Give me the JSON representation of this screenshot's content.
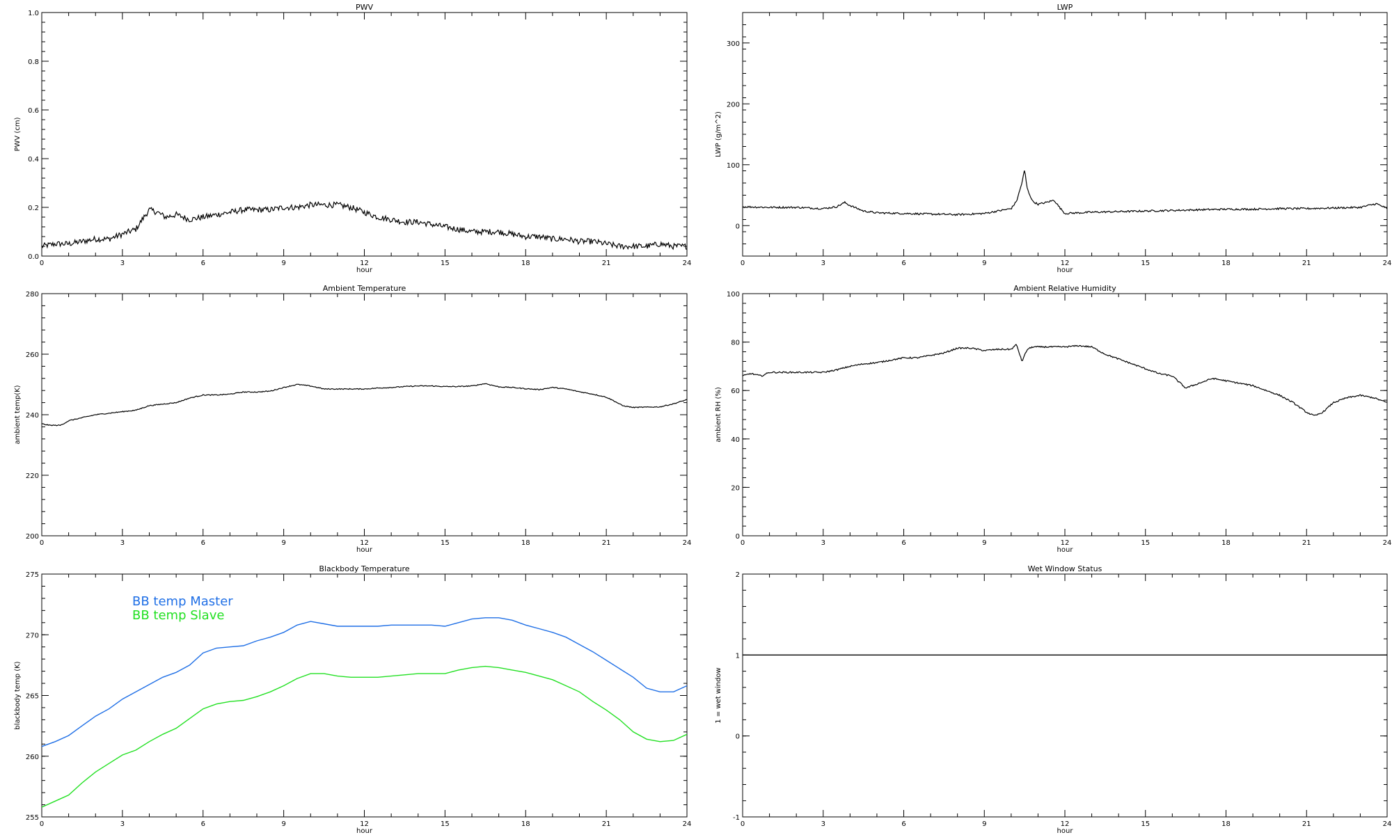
{
  "colors": {
    "background": "#ffffff",
    "axes": "#000000",
    "master": "#1f6fe6",
    "slave": "#22e022"
  },
  "chart_data": [
    {
      "type": "line",
      "title": "PWV",
      "xlabel": "hour",
      "ylabel": "PWV (cm)",
      "xlim": [
        0,
        24
      ],
      "ylim": [
        0,
        1.0
      ],
      "xticks": [
        "0",
        "3",
        "6",
        "9",
        "12",
        "15",
        "18",
        "21",
        "24"
      ],
      "yticks": [
        "0.0",
        "0.2",
        "0.4",
        "0.6",
        "0.8",
        "1.0"
      ],
      "grid": false,
      "series": [
        {
          "color": "#000000",
          "noise": 0.012,
          "x": [
            0,
            0.5,
            1,
            1.5,
            2,
            2.5,
            3,
            3.5,
            3.8,
            4.0,
            4.3,
            4.6,
            5.0,
            5.5,
            6,
            6.5,
            7,
            7.5,
            8,
            8.5,
            9,
            9.5,
            10,
            10.5,
            11,
            11.5,
            12,
            12.5,
            13,
            13.5,
            14,
            14.5,
            15,
            15.5,
            16,
            16.5,
            17,
            17.5,
            18,
            18.5,
            19,
            19.5,
            20,
            20.5,
            21,
            21.5,
            22,
            22.5,
            23,
            23.5,
            24
          ],
          "y": [
            0.04,
            0.05,
            0.05,
            0.06,
            0.07,
            0.07,
            0.09,
            0.11,
            0.16,
            0.19,
            0.18,
            0.16,
            0.17,
            0.15,
            0.16,
            0.17,
            0.18,
            0.19,
            0.19,
            0.19,
            0.2,
            0.2,
            0.21,
            0.21,
            0.21,
            0.2,
            0.18,
            0.16,
            0.15,
            0.14,
            0.14,
            0.13,
            0.12,
            0.11,
            0.1,
            0.1,
            0.1,
            0.09,
            0.08,
            0.08,
            0.07,
            0.07,
            0.06,
            0.06,
            0.05,
            0.04,
            0.04,
            0.04,
            0.05,
            0.04,
            0.04
          ]
        }
      ]
    },
    {
      "type": "line",
      "title": "LWP",
      "xlabel": "hour",
      "ylabel": "LWP (g/m^2)",
      "xlim": [
        0,
        24
      ],
      "ylim": [
        -50,
        350
      ],
      "xticks": [
        "0",
        "3",
        "6",
        "9",
        "12",
        "15",
        "18",
        "21",
        "24"
      ],
      "yticks": [
        "0",
        "100",
        "200",
        "300"
      ],
      "yticks_at": [
        0,
        100,
        200,
        300
      ],
      "grid": false,
      "series": [
        {
          "color": "#000000",
          "noise": 1.5,
          "x": [
            0,
            1,
            2,
            3,
            3.5,
            3.8,
            4.0,
            4.5,
            5,
            6,
            7,
            8,
            9,
            9.5,
            10,
            10.2,
            10.4,
            10.5,
            10.6,
            10.8,
            11,
            11.3,
            11.6,
            11.8,
            12,
            13,
            14,
            15,
            16,
            17,
            18,
            19,
            20,
            21,
            22,
            23,
            23.6,
            24
          ],
          "y": [
            31,
            30,
            30,
            28,
            31,
            38,
            33,
            24,
            21,
            20,
            19,
            18,
            20,
            24,
            28,
            40,
            70,
            92,
            60,
            40,
            35,
            38,
            42,
            30,
            20,
            22,
            23,
            24,
            25,
            26,
            27,
            27,
            28,
            28,
            29,
            30,
            36,
            28
          ]
        }
      ]
    },
    {
      "type": "line",
      "title": "Ambient Temperature",
      "xlabel": "hour",
      "ylabel": "ambient temp(K)",
      "xlim": [
        0,
        24
      ],
      "ylim": [
        200,
        280
      ],
      "xticks": [
        "0",
        "3",
        "6",
        "9",
        "12",
        "15",
        "18",
        "21",
        "24"
      ],
      "yticks": [
        "200",
        "220",
        "240",
        "260",
        "280"
      ],
      "yticks_at": [
        200,
        220,
        240,
        260,
        280
      ],
      "grid": false,
      "series": [
        {
          "color": "#000000",
          "noise": 0.15,
          "x": [
            0,
            0.3,
            0.7,
            1,
            1.5,
            2,
            2.5,
            3,
            3.5,
            4,
            4.5,
            5,
            5.5,
            6,
            6.5,
            7,
            7.5,
            8,
            8.5,
            9,
            9.5,
            10,
            10.5,
            11,
            11.5,
            12,
            12.5,
            13,
            13.5,
            14,
            14.5,
            15,
            15.5,
            16,
            16.5,
            17,
            17.5,
            18,
            18.5,
            19,
            19.5,
            20,
            20.5,
            21,
            21.3,
            21.6,
            22,
            22.5,
            23,
            23.5,
            24
          ],
          "y": [
            237,
            236.5,
            236.5,
            238,
            239,
            240,
            240.5,
            241,
            241.5,
            243,
            243.5,
            244,
            245.5,
            246.5,
            246.5,
            246.8,
            247.5,
            247.5,
            247.8,
            249,
            250,
            249.5,
            248.5,
            248.5,
            248.5,
            248.5,
            248.8,
            249,
            249.3,
            249.5,
            249.5,
            249.3,
            249.3,
            249.5,
            250.3,
            249.2,
            249,
            248.6,
            248.3,
            249,
            248.5,
            247.6,
            246.8,
            245.8,
            244.5,
            243,
            242.4,
            242.5,
            242.6,
            243.6,
            245
          ]
        }
      ]
    },
    {
      "type": "line",
      "title": "Ambient Relative Humidity",
      "xlabel": "hour",
      "ylabel": "ambient RH (%)",
      "xlim": [
        0,
        24
      ],
      "ylim": [
        0,
        100
      ],
      "xticks": [
        "0",
        "3",
        "6",
        "9",
        "12",
        "15",
        "18",
        "21",
        "24"
      ],
      "yticks": [
        "0",
        "20",
        "40",
        "60",
        "80",
        "100"
      ],
      "yticks_at": [
        0,
        20,
        40,
        60,
        80,
        100
      ],
      "grid": false,
      "series": [
        {
          "color": "#000000",
          "noise": 0.3,
          "x": [
            0,
            0.3,
            0.7,
            1,
            1.5,
            2,
            2.5,
            3,
            3.5,
            4,
            4.5,
            5,
            5.5,
            6,
            6.5,
            7,
            7.5,
            8,
            8.5,
            9,
            9.5,
            10,
            10.2,
            10.4,
            10.6,
            10.8,
            11,
            11.5,
            12,
            12.5,
            13,
            13.5,
            14,
            14.5,
            15,
            15.5,
            16,
            16.5,
            17,
            17.5,
            18,
            18.5,
            19,
            19.5,
            20,
            20.5,
            21,
            21.3,
            21.6,
            22,
            22.5,
            23,
            23.5,
            24
          ],
          "y": [
            66,
            67,
            66,
            67.5,
            67.5,
            67.5,
            67.5,
            67.5,
            68.5,
            70,
            71,
            71.5,
            72.5,
            73.5,
            73.5,
            74.5,
            75.5,
            77.5,
            77.5,
            76.5,
            77,
            77,
            79,
            72,
            77,
            78,
            78,
            78,
            78,
            78.5,
            78,
            75,
            73,
            71,
            69,
            67,
            66,
            61,
            63,
            65,
            64,
            63,
            62,
            60,
            58,
            55,
            51,
            49.5,
            51,
            55,
            57,
            58,
            57,
            55
          ]
        }
      ]
    },
    {
      "type": "line",
      "title": "Blackbody Temperature",
      "xlabel": "hour",
      "ylabel": "blackbody temp (K)",
      "xlim": [
        0,
        24
      ],
      "ylim": [
        255,
        275
      ],
      "xticks": [
        "0",
        "3",
        "6",
        "9",
        "12",
        "15",
        "18",
        "21",
        "24"
      ],
      "yticks": [
        "255",
        "260",
        "265",
        "270",
        "275"
      ],
      "yticks_at": [
        255,
        260,
        265,
        270,
        275
      ],
      "grid": false,
      "legend": {
        "placement": "top-left",
        "entries": [
          "BB temp Master",
          "BB temp Slave"
        ]
      },
      "series": [
        {
          "name": "BB temp Master",
          "color": "#1f6fe6",
          "noise": 0,
          "x": [
            0,
            0.5,
            1,
            1.5,
            2,
            2.5,
            3,
            3.5,
            4,
            4.5,
            5,
            5.5,
            6,
            6.5,
            7,
            7.5,
            8,
            8.5,
            9,
            9.5,
            10,
            10.5,
            11,
            11.5,
            12,
            12.5,
            13,
            13.5,
            14,
            14.5,
            15,
            15.5,
            16,
            16.5,
            17,
            17.5,
            18,
            18.5,
            19,
            19.5,
            20,
            20.5,
            21,
            21.5,
            22,
            22.5,
            23,
            23.5,
            24
          ],
          "y": [
            260.8,
            261.2,
            261.7,
            262.5,
            263.3,
            263.9,
            264.7,
            265.3,
            265.9,
            266.5,
            266.9,
            267.5,
            268.5,
            268.9,
            269,
            269.1,
            269.5,
            269.8,
            270.2,
            270.8,
            271.1,
            270.9,
            270.7,
            270.7,
            270.7,
            270.7,
            270.8,
            270.8,
            270.8,
            270.8,
            270.7,
            271,
            271.3,
            271.4,
            271.4,
            271.2,
            270.8,
            270.5,
            270.2,
            269.8,
            269.2,
            268.6,
            267.9,
            267.2,
            266.5,
            265.6,
            265.3,
            265.3,
            265.8
          ]
        },
        {
          "name": "BB temp Slave",
          "color": "#22e022",
          "noise": 0,
          "x": [
            0,
            0.5,
            1,
            1.5,
            2,
            2.5,
            3,
            3.5,
            4,
            4.5,
            5,
            5.5,
            6,
            6.5,
            7,
            7.5,
            8,
            8.5,
            9,
            9.5,
            10,
            10.5,
            11,
            11.5,
            12,
            12.5,
            13,
            13.5,
            14,
            14.5,
            15,
            15.5,
            16,
            16.5,
            17,
            17.5,
            18,
            18.5,
            19,
            19.5,
            20,
            20.5,
            21,
            21.5,
            22,
            22.5,
            23,
            23.5,
            24
          ],
          "y": [
            255.8,
            256.3,
            256.8,
            257.8,
            258.7,
            259.4,
            260.1,
            260.5,
            261.2,
            261.8,
            262.3,
            263.1,
            263.9,
            264.3,
            264.5,
            264.6,
            264.9,
            265.3,
            265.8,
            266.4,
            266.8,
            266.8,
            266.6,
            266.5,
            266.5,
            266.5,
            266.6,
            266.7,
            266.8,
            266.8,
            266.8,
            267.1,
            267.3,
            267.4,
            267.3,
            267.1,
            266.9,
            266.6,
            266.3,
            265.8,
            265.3,
            264.5,
            263.8,
            263,
            262,
            261.4,
            261.2,
            261.3,
            261.8
          ]
        }
      ]
    },
    {
      "type": "line",
      "title": "Wet Window Status",
      "xlabel": "hour",
      "ylabel": "1 = wet window",
      "xlim": [
        0,
        24
      ],
      "ylim": [
        -1,
        2
      ],
      "xticks": [
        "0",
        "3",
        "6",
        "9",
        "12",
        "15",
        "18",
        "21",
        "24"
      ],
      "yticks": [
        "-1",
        "0",
        "1",
        "2"
      ],
      "yticks_at": [
        -1,
        0,
        1,
        2
      ],
      "grid": false,
      "series": [
        {
          "color": "#000000",
          "noise": 0,
          "x": [
            0,
            24
          ],
          "y": [
            1,
            1
          ]
        }
      ]
    }
  ]
}
